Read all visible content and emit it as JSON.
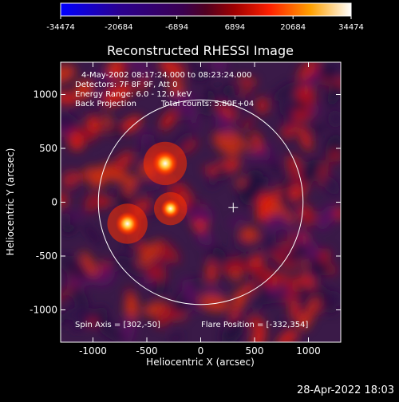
{
  "chart_data": {
    "type": "heatmap",
    "title": "Reconstructed RHESSI Image",
    "xlabel": "Heliocentric X (arcsec)",
    "ylabel": "Heliocentric Y (arcsec)",
    "xlim": [
      -1300,
      1300
    ],
    "ylim": [
      -1300,
      1300
    ],
    "x_ticks": [
      "-1000",
      "-500",
      "0",
      "500",
      "1000"
    ],
    "y_ticks": [
      "-1000",
      "-500",
      "0",
      "500",
      "1000"
    ],
    "colorbar": {
      "ticks": [
        "-34474",
        "-20684",
        "-6894",
        "6894",
        "20684",
        "34474"
      ],
      "range": [
        -34474,
        34474
      ]
    },
    "annotations": {
      "time": "4-May-2002 08:17:24.000 to 08:23:24.000",
      "detectors": "Detectors: 7F 8F 9F, Att 0",
      "energy": "Energy Range: 6.0 - 12.0 keV",
      "method": "Back Projection",
      "counts": "Total counts: 5.80E+04",
      "spin_axis": "Spin Axis = [302,-50]",
      "flare_position": "Flare Position = [-332,354]"
    },
    "solar_limb": {
      "center": [
        0,
        0
      ],
      "radius_arcsec": 950
    },
    "marker": {
      "type": "cross",
      "x": 302,
      "y": -50
    },
    "sources": [
      {
        "x": -330,
        "y": 360,
        "intensity": 34474
      },
      {
        "x": -680,
        "y": -200,
        "intensity": 30000
      },
      {
        "x": -280,
        "y": -60,
        "intensity": 20000
      }
    ],
    "grid": false
  },
  "footer": {
    "timestamp": "28-Apr-2022 18:03"
  }
}
